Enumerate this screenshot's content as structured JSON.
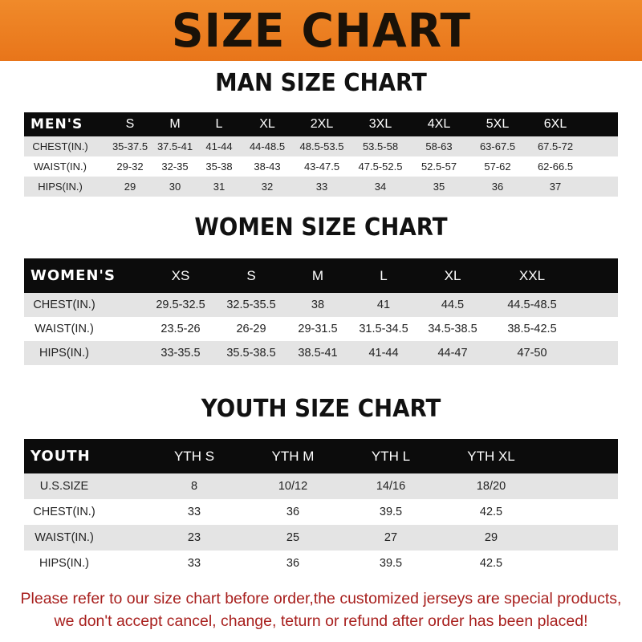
{
  "title": "SIZE CHART",
  "colors": {
    "banner": "#ec7f22",
    "header_row": "#0c0c0c",
    "stripe": "#e4e4e4",
    "notice_text": "#a8201e"
  },
  "men": {
    "heading": "MAN SIZE CHART",
    "columns": [
      "MEN'S",
      "S",
      "M",
      "L",
      "XL",
      "2XL",
      "3XL",
      "4XL",
      "5XL",
      "6XL"
    ],
    "rows": [
      [
        "CHEST(IN.)",
        "35-37.5",
        "37.5-41",
        "41-44",
        "44-48.5",
        "48.5-53.5",
        "53.5-58",
        "58-63",
        "63-67.5",
        "67.5-72"
      ],
      [
        "WAIST(IN.)",
        "29-32",
        "32-35",
        "35-38",
        "38-43",
        "43-47.5",
        "47.5-52.5",
        "52.5-57",
        "57-62",
        "62-66.5"
      ],
      [
        "HIPS(IN.)",
        "29",
        "30",
        "31",
        "32",
        "33",
        "34",
        "35",
        "36",
        "37"
      ]
    ]
  },
  "women": {
    "heading": "WOMEN SIZE CHART",
    "columns": [
      "WOMEN'S",
      "XS",
      "S",
      "M",
      "L",
      "XL",
      "XXL"
    ],
    "rows": [
      [
        "CHEST(IN.)",
        "29.5-32.5",
        "32.5-35.5",
        "38",
        "41",
        "44.5",
        "44.5-48.5"
      ],
      [
        "WAIST(IN.)",
        "23.5-26",
        "26-29",
        "29-31.5",
        "31.5-34.5",
        "34.5-38.5",
        "38.5-42.5"
      ],
      [
        "HIPS(IN.)",
        "33-35.5",
        "35.5-38.5",
        "38.5-41",
        "41-44",
        "44-47",
        "47-50"
      ]
    ]
  },
  "youth": {
    "heading": "YOUTH SIZE CHART",
    "columns": [
      "YOUTH",
      "YTH S",
      "YTH M",
      "YTH L",
      "YTH XL"
    ],
    "rows": [
      [
        "U.S.SIZE",
        "8",
        "10/12",
        "14/16",
        "18/20"
      ],
      [
        "CHEST(IN.)",
        "33",
        "36",
        "39.5",
        "42.5"
      ],
      [
        "WAIST(IN.)",
        "23",
        "25",
        "27",
        "29"
      ],
      [
        "HIPS(IN.)",
        "33",
        "36",
        "39.5",
        "42.5"
      ]
    ]
  },
  "notice": {
    "line1": "Please refer to our size chart before order,the customized jerseys are special products,",
    "line2": "we don't accept cancel, change, teturn or refund after order has been placed!"
  }
}
